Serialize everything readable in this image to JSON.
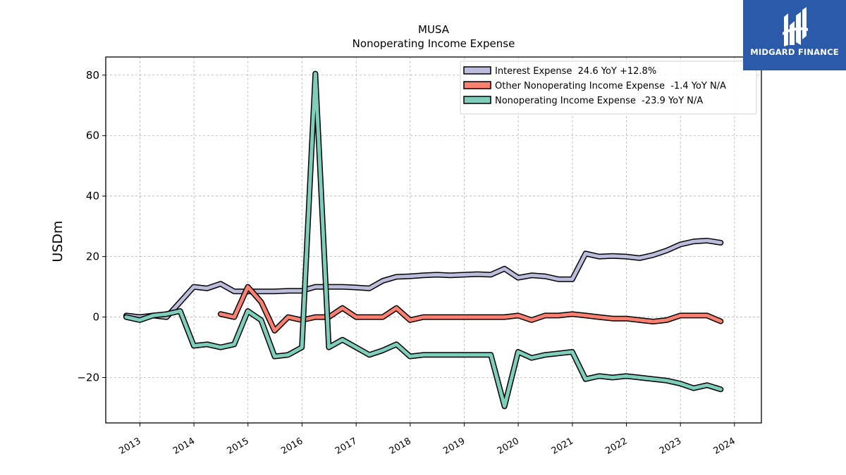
{
  "brand": {
    "name": "MIDGARD FINANCE",
    "logo_icon": "midgard-finance-logo-icon",
    "background": "#2b5aa8"
  },
  "chart_data": {
    "type": "line",
    "title": "MUSA",
    "subtitle": "Nonoperating Income Expense",
    "xlabel": "",
    "ylabel": "USDm",
    "xlim": [
      "2012-05-15",
      "2024-07-01"
    ],
    "ylim": [
      -35,
      86
    ],
    "yticks": [
      -20,
      0,
      20,
      40,
      60,
      80
    ],
    "ytick_labels": [
      "−20",
      "0",
      "20",
      "40",
      "60",
      "80"
    ],
    "xticks": [
      "2013",
      "2014",
      "2015",
      "2016",
      "2017",
      "2018",
      "2019",
      "2020",
      "2021",
      "2022",
      "2023",
      "2024"
    ],
    "grid": true,
    "legend_position": "top-right",
    "series": [
      {
        "name": "Interest Expense  24.6 YoY +12.8%",
        "color": "#bcbddc",
        "x": [
          "2012-09-30",
          "2012-12-31",
          "2013-03-31",
          "2013-06-30",
          "2013-09-30",
          "2013-12-31",
          "2014-03-31",
          "2014-06-30",
          "2014-09-30",
          "2014-12-31",
          "2015-03-31",
          "2015-06-30",
          "2015-09-30",
          "2015-12-31",
          "2016-03-31",
          "2016-06-30",
          "2016-09-30",
          "2016-12-31",
          "2017-03-31",
          "2017-06-30",
          "2017-09-30",
          "2017-12-31",
          "2018-03-31",
          "2018-06-30",
          "2018-09-30",
          "2018-12-31",
          "2019-03-31",
          "2019-06-30",
          "2019-09-30",
          "2019-12-31",
          "2020-03-31",
          "2020-06-30",
          "2020-09-30",
          "2020-12-31",
          "2021-03-31",
          "2021-06-30",
          "2021-09-30",
          "2021-12-31",
          "2022-03-31",
          "2022-06-30",
          "2022-09-30",
          "2022-12-31",
          "2023-03-31",
          "2023-06-30",
          "2023-09-30"
        ],
        "values": [
          0.5,
          0,
          0.5,
          0,
          5,
          10,
          9.5,
          11,
          8.5,
          8.5,
          8.5,
          8.5,
          8.7,
          8.7,
          10,
          10,
          10,
          9.8,
          9.5,
          12,
          13.3,
          13.5,
          13.8,
          14,
          13.8,
          14,
          14.2,
          14,
          16,
          13,
          13.8,
          13.5,
          12.5,
          12.5,
          21,
          20,
          20.2,
          20,
          19.5,
          20.5,
          22,
          24,
          25,
          25.3,
          24.6
        ]
      },
      {
        "name": "Other Nonoperating Income Expense  -1.4 YoY N/A",
        "color": "#fa8072",
        "x": [
          "2014-06-30",
          "2014-09-30",
          "2014-12-31",
          "2015-03-31",
          "2015-06-30",
          "2015-09-30",
          "2015-12-31",
          "2016-03-31",
          "2016-06-30",
          "2016-09-30",
          "2016-12-31",
          "2017-03-31",
          "2017-06-30",
          "2017-09-30",
          "2017-12-31",
          "2018-03-31",
          "2018-06-30",
          "2018-09-30",
          "2018-12-31",
          "2019-03-31",
          "2019-06-30",
          "2019-09-30",
          "2019-12-31",
          "2020-03-31",
          "2020-06-30",
          "2020-09-30",
          "2020-12-31",
          "2021-03-31",
          "2021-06-30",
          "2021-09-30",
          "2021-12-31",
          "2022-03-31",
          "2022-06-30",
          "2022-09-30",
          "2022-12-31",
          "2023-03-31",
          "2023-06-30",
          "2023-09-30"
        ],
        "values": [
          1,
          0,
          10,
          5,
          -4.5,
          0,
          -1,
          0,
          0,
          3,
          0,
          0,
          0,
          3,
          -1,
          0,
          0,
          0,
          0,
          0,
          0,
          0,
          0.5,
          -1,
          0.5,
          0.5,
          1,
          0.5,
          0,
          -0.5,
          -0.5,
          -1,
          -1.5,
          -1,
          0.5,
          0.5,
          0.5,
          -1.4
        ]
      },
      {
        "name": "Nonoperating Income Expense  -23.9 YoY N/A",
        "color": "#7fcdbb",
        "x": [
          "2012-09-30",
          "2012-12-31",
          "2013-03-31",
          "2013-06-30",
          "2013-09-30",
          "2013-12-31",
          "2014-03-31",
          "2014-06-30",
          "2014-09-30",
          "2014-12-31",
          "2015-03-31",
          "2015-06-30",
          "2015-09-30",
          "2015-12-31",
          "2016-03-31",
          "2016-06-30",
          "2016-09-30",
          "2016-12-31",
          "2017-03-31",
          "2017-06-30",
          "2017-09-30",
          "2017-12-31",
          "2018-03-31",
          "2018-06-30",
          "2018-09-30",
          "2018-12-31",
          "2019-03-31",
          "2019-06-30",
          "2019-09-30",
          "2019-12-31",
          "2020-03-31",
          "2020-06-30",
          "2020-09-30",
          "2020-12-31",
          "2021-03-31",
          "2021-06-30",
          "2021-09-30",
          "2021-12-31",
          "2022-03-31",
          "2022-06-30",
          "2022-09-30",
          "2022-12-31",
          "2023-03-31",
          "2023-06-30",
          "2023-09-30"
        ],
        "values": [
          0,
          -1,
          0.5,
          1,
          2,
          -9.5,
          -9,
          -10,
          -9,
          2,
          -1,
          -13,
          -12.5,
          -10,
          80.5,
          -10,
          -7.5,
          -10,
          -12.5,
          -11,
          -9,
          -13,
          -12.5,
          -12.5,
          -12.5,
          -12.5,
          -12.5,
          -12.5,
          -29.5,
          -11.5,
          -13.5,
          -12.5,
          -12,
          -11.5,
          -20.5,
          -19.5,
          -20,
          -19.5,
          -20,
          -20.5,
          -21,
          -22,
          -23.5,
          -22.5,
          -23.9
        ]
      }
    ]
  }
}
